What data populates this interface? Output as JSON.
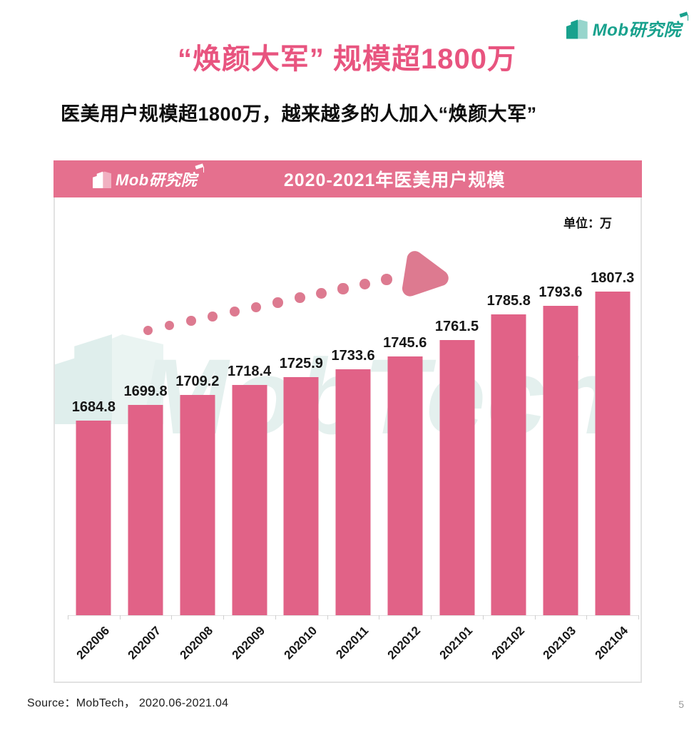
{
  "page": {
    "title": "“焕颜大军” 规模超1800万",
    "subtitle": "医美用户规模超1800万，越来越多的人加入“焕颜大军”",
    "source": "Source：MobTech， 2020.06-2021.04",
    "page_number": "5"
  },
  "brand": {
    "logo_text": "Mob研究院",
    "watermark_text": "MobTech 袤博",
    "teal_color": "#18a18d"
  },
  "chart": {
    "banner_title": "2020-2021年医美用户规模",
    "unit_label": "单位：万",
    "colors": {
      "bar": "#e16287",
      "banner": "#e5708e",
      "arrow": "#dd7a90",
      "title_pink": "#e8547f"
    }
  },
  "chart_data": {
    "type": "bar",
    "title": "2020-2021年医美用户规模",
    "unit": "万",
    "categories": [
      "202006",
      "202007",
      "202008",
      "202009",
      "202010",
      "202011",
      "202012",
      "202101",
      "202102",
      "202103",
      "202104"
    ],
    "values": [
      1684.8,
      1699.8,
      1709.2,
      1718.4,
      1725.9,
      1733.6,
      1745.6,
      1761.5,
      1785.8,
      1793.6,
      1807.3
    ],
    "ylim": [
      1500,
      1850
    ],
    "y_axis_visible": false,
    "grid": false,
    "value_labels": true,
    "x_label_rotation": 45,
    "annotation": "rising dotted arrow trend marker"
  }
}
